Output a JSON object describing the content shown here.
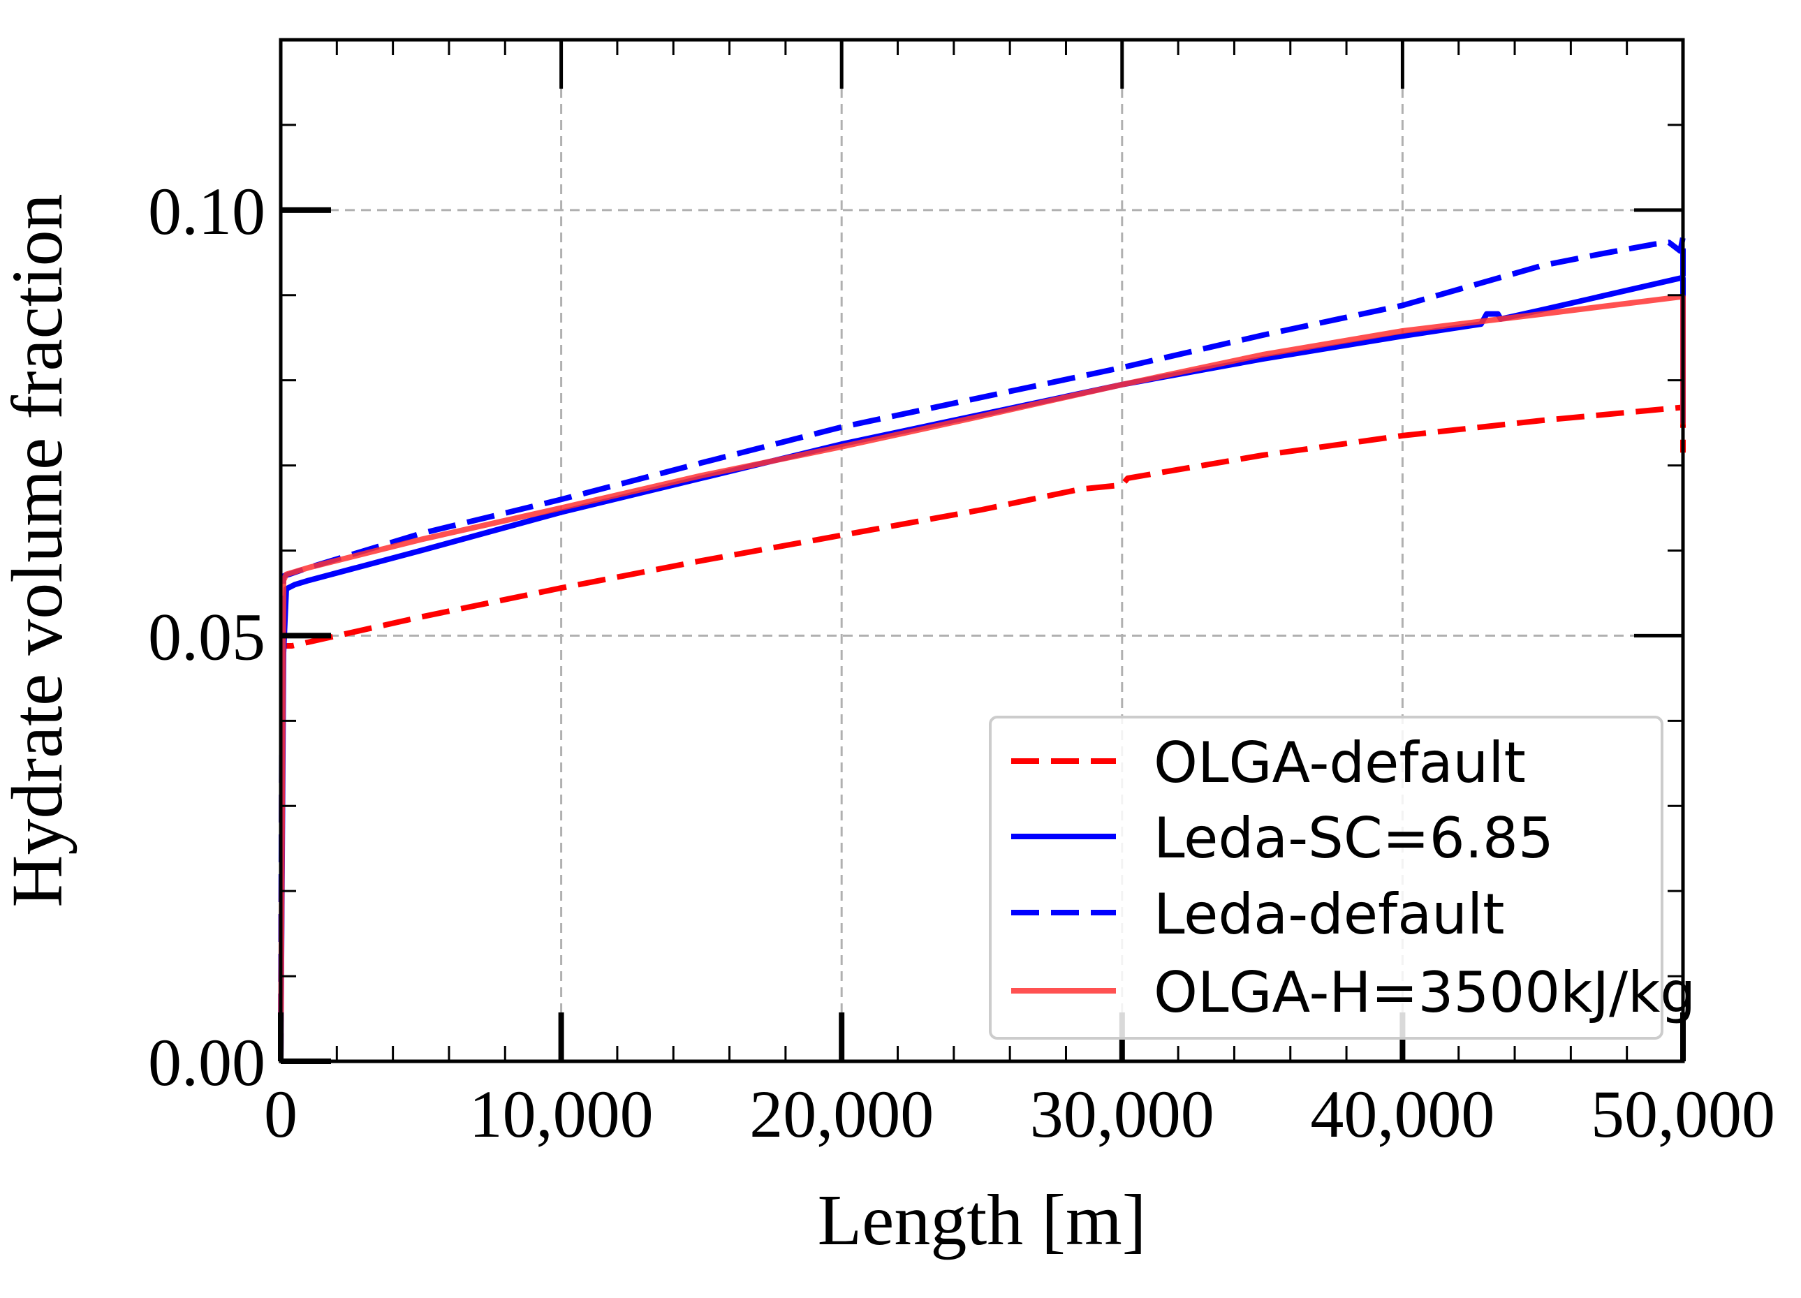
{
  "chart_data": {
    "type": "line",
    "title": "",
    "xlabel": "Length [m]",
    "ylabel": "Hydrate volume fraction",
    "xlim": [
      0,
      50000
    ],
    "ylim": [
      0,
      0.12
    ],
    "x_ticks": [
      {
        "value": 0,
        "label": "0"
      },
      {
        "value": 10000,
        "label": "10,000"
      },
      {
        "value": 20000,
        "label": "20,000"
      },
      {
        "value": 30000,
        "label": "30,000"
      },
      {
        "value": 40000,
        "label": "40,000"
      },
      {
        "value": 50000,
        "label": "50,000"
      }
    ],
    "y_ticks": [
      {
        "value": 0.0,
        "label": "0.00"
      },
      {
        "value": 0.05,
        "label": "0.05"
      },
      {
        "value": 0.1,
        "label": "0.10"
      }
    ],
    "x_minor_step": 2000,
    "y_minor_step": 0.01,
    "grid": true,
    "legend_position": "lower-right",
    "series": [
      {
        "name": "OLGA-default",
        "color": "#ff0000",
        "style": "dashed",
        "x": [
          0,
          50,
          100,
          400,
          5000,
          10000,
          15000,
          20000,
          25000,
          28500,
          30000,
          30200,
          35000,
          40000,
          45000,
          49900,
          50000,
          50000
        ],
        "y": [
          0.0,
          0.045,
          0.0488,
          0.0488,
          0.0522,
          0.0556,
          0.0588,
          0.0618,
          0.0648,
          0.0672,
          0.0677,
          0.0685,
          0.0712,
          0.0735,
          0.0753,
          0.0768,
          0.0768,
          0.0715
        ]
      },
      {
        "name": "Leda-SC=6.85",
        "color": "#0000ff",
        "style": "solid",
        "x": [
          0,
          100,
          200,
          500,
          1000,
          5000,
          10000,
          15000,
          20000,
          25000,
          30000,
          35000,
          40000,
          42800,
          43000,
          43400,
          43500,
          45000,
          49900,
          50000,
          50000
        ],
        "y": [
          0.0,
          0.048,
          0.0555,
          0.056,
          0.0565,
          0.06,
          0.0645,
          0.0685,
          0.0725,
          0.076,
          0.0795,
          0.0825,
          0.0852,
          0.0866,
          0.0878,
          0.0878,
          0.0872,
          0.0883,
          0.092,
          0.092,
          0.075
        ]
      },
      {
        "name": "Leda-default",
        "color": "#0000ff",
        "style": "dashed",
        "x": [
          0,
          50,
          100,
          300,
          1000,
          5000,
          10000,
          15000,
          20000,
          25000,
          30000,
          35000,
          40000,
          45000,
          47000,
          49000,
          49500,
          49900,
          50000,
          50000
        ],
        "y": [
          0.0,
          0.05,
          0.057,
          0.0572,
          0.058,
          0.062,
          0.066,
          0.0703,
          0.0745,
          0.078,
          0.0815,
          0.0853,
          0.0888,
          0.0935,
          0.0948,
          0.096,
          0.0962,
          0.0952,
          0.0968,
          0.075
        ]
      },
      {
        "name": "OLGA-H=3500kJ/kg",
        "color": "#ff3333",
        "style": "solid",
        "x": [
          0,
          100,
          200,
          500,
          1000,
          5000,
          10000,
          15000,
          20000,
          25000,
          30000,
          35000,
          40000,
          45000,
          49900,
          50000,
          50000
        ],
        "y": [
          0.0,
          0.0565,
          0.0572,
          0.0575,
          0.058,
          0.0613,
          0.065,
          0.0688,
          0.0722,
          0.0758,
          0.0795,
          0.083,
          0.0858,
          0.0878,
          0.0898,
          0.0898,
          0.0748
        ]
      }
    ]
  }
}
